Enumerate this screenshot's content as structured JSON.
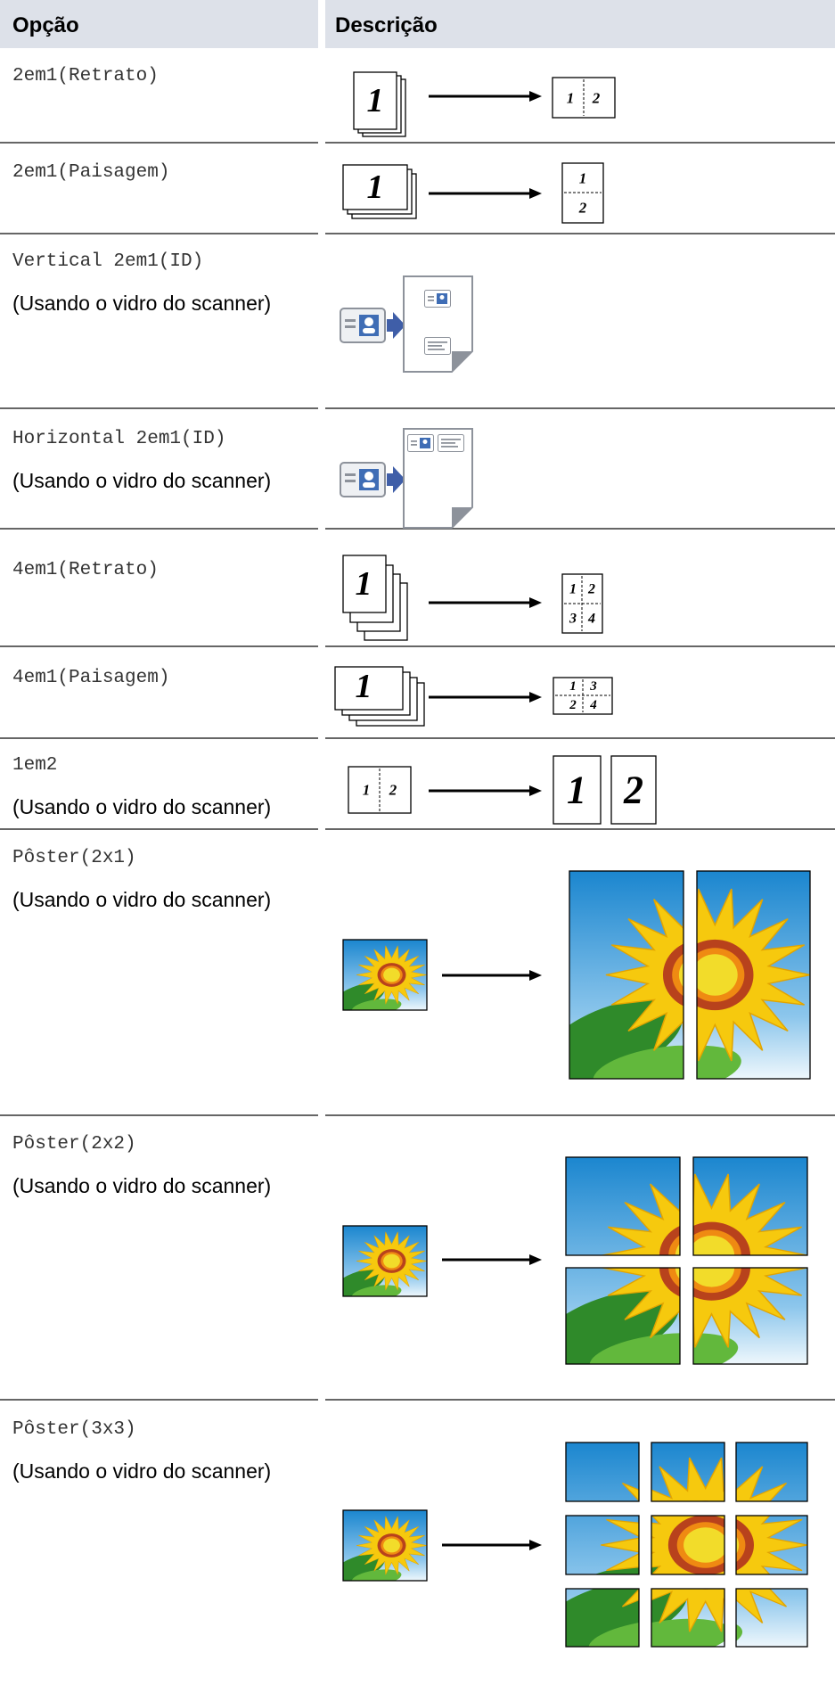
{
  "header": {
    "option": "Opção",
    "description": "Descrição"
  },
  "rows": [
    {
      "option": "2em1(Retrato)",
      "figure": [
        "1",
        "1",
        "2"
      ]
    },
    {
      "option": "2em1(Paisagem)",
      "figure": [
        "1",
        "1",
        "2"
      ]
    },
    {
      "option": "Vertical 2em1(ID)",
      "note": "(Usando o vidro do scanner)"
    },
    {
      "option": "Horizontal 2em1(ID)",
      "note": "(Usando o vidro do scanner)"
    },
    {
      "option": "4em1(Retrato)",
      "figure": [
        "1",
        "1",
        "2",
        "3",
        "4"
      ]
    },
    {
      "option": "4em1(Paisagem)",
      "figure": [
        "1",
        "1",
        "2",
        "3",
        "4"
      ]
    },
    {
      "option": "1em2",
      "note": "(Usando o vidro do scanner)",
      "figure": [
        "1",
        "2",
        "1",
        "2"
      ]
    },
    {
      "option": "Pôster(2x1)",
      "note": "(Usando o vidro do scanner)"
    },
    {
      "option": "Pôster(2x2)",
      "note": "(Usando o vidro do scanner)"
    },
    {
      "option": "Pôster(3x3)",
      "note": "(Usando o vidro do scanner)"
    }
  ]
}
